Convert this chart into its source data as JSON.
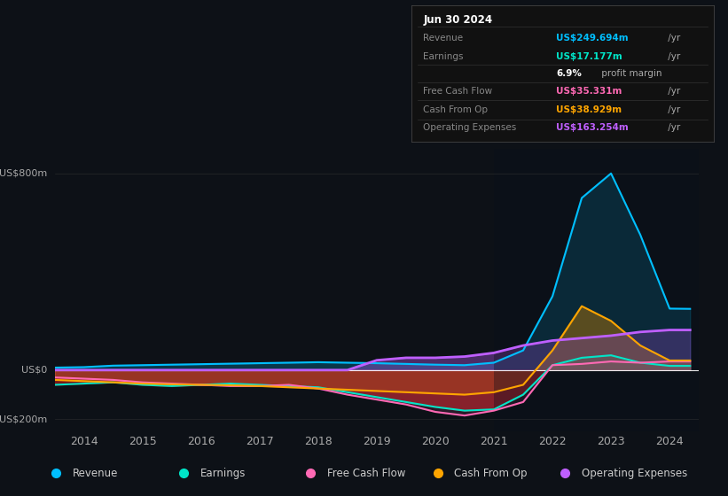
{
  "bg_color": "#0d1117",
  "y_label_top": "US$800m",
  "y_label_zero": "US$0",
  "y_label_bot": "-US$200m",
  "legend": [
    {
      "label": "Revenue",
      "color": "#00bfff"
    },
    {
      "label": "Earnings",
      "color": "#00e5c8"
    },
    {
      "label": "Free Cash Flow",
      "color": "#ff69b4"
    },
    {
      "label": "Cash From Op",
      "color": "#ffa500"
    },
    {
      "label": "Operating Expenses",
      "color": "#bf5fff"
    }
  ],
  "info_box": {
    "date": "Jun 30 2024",
    "rows": [
      {
        "label": "Revenue",
        "value": "US$249.694m",
        "suffix": " /yr",
        "color": "#00bfff"
      },
      {
        "label": "Earnings",
        "value": "US$17.177m",
        "suffix": " /yr",
        "color": "#00e5c8"
      },
      {
        "label": "",
        "value": "6.9%",
        "suffix": " profit margin",
        "color": "#ffffff"
      },
      {
        "label": "Free Cash Flow",
        "value": "US$35.331m",
        "suffix": " /yr",
        "color": "#ff69b4"
      },
      {
        "label": "Cash From Op",
        "value": "US$38.929m",
        "suffix": " /yr",
        "color": "#ffa500"
      },
      {
        "label": "Operating Expenses",
        "value": "US$163.254m",
        "suffix": " /yr",
        "color": "#bf5fff"
      }
    ]
  },
  "years": [
    2013.5,
    2014.0,
    2014.5,
    2015.0,
    2015.5,
    2016.0,
    2016.5,
    2017.0,
    2017.5,
    2018.0,
    2018.5,
    2019.0,
    2019.5,
    2020.0,
    2020.5,
    2021.0,
    2021.5,
    2022.0,
    2022.5,
    2023.0,
    2023.5,
    2024.0,
    2024.35
  ],
  "revenue": [
    10,
    12,
    18,
    20,
    22,
    24,
    26,
    28,
    30,
    32,
    30,
    28,
    25,
    22,
    20,
    30,
    80,
    300,
    700,
    800,
    550,
    250,
    249
  ],
  "earnings": [
    -60,
    -55,
    -50,
    -60,
    -65,
    -60,
    -55,
    -60,
    -65,
    -70,
    -90,
    -110,
    -130,
    -150,
    -165,
    -160,
    -100,
    20,
    50,
    60,
    30,
    17,
    17
  ],
  "free_cash_flow": [
    -30,
    -35,
    -40,
    -50,
    -55,
    -60,
    -65,
    -65,
    -60,
    -75,
    -100,
    -120,
    -140,
    -170,
    -185,
    -165,
    -130,
    20,
    25,
    35,
    30,
    35,
    35
  ],
  "cash_from_op": [
    -40,
    -45,
    -50,
    -55,
    -58,
    -60,
    -62,
    -65,
    -70,
    -75,
    -80,
    -85,
    -90,
    -95,
    -100,
    -90,
    -60,
    80,
    260,
    200,
    100,
    39,
    39
  ],
  "operating_expenses": [
    0,
    0,
    0,
    0,
    0,
    0,
    0,
    0,
    0,
    0,
    0,
    40,
    50,
    50,
    55,
    70,
    100,
    120,
    130,
    140,
    155,
    163,
    163
  ],
  "ylim": [
    -250,
    900
  ],
  "xlim": [
    2013.5,
    2024.5
  ],
  "x_ticks": [
    2014,
    2015,
    2016,
    2017,
    2018,
    2019,
    2020,
    2021,
    2022,
    2023,
    2024
  ]
}
